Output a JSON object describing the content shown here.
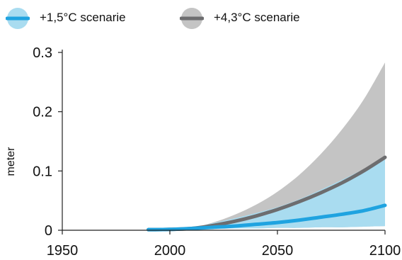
{
  "legend": {
    "items": [
      {
        "label": "+1,5°C scenarie",
        "color": "#1fa3e0",
        "band_color": "#a9dcf0"
      },
      {
        "label": "+4,3°C scenarie",
        "color": "#6d6d6f",
        "band_color": "#c4c4c4"
      }
    ]
  },
  "chart_data": {
    "type": "line",
    "xlabel": "",
    "ylabel": "meter",
    "xlim": [
      1950,
      2100
    ],
    "ylim": [
      0,
      0.3
    ],
    "x_ticks": [
      1950,
      2000,
      2050,
      2100
    ],
    "y_ticks": [
      0,
      0.1,
      0.2,
      0.3
    ],
    "y_tick_labels": [
      "0",
      "0.1",
      "0.2",
      "0.3"
    ],
    "grid": false,
    "legend_position": "top-left",
    "series": [
      {
        "name": "+1,5°C scenarie",
        "color": "#1fa3e0",
        "band_color": "#a9dcf0",
        "x": [
          1990,
          2000,
          2010,
          2020,
          2030,
          2040,
          2050,
          2060,
          2070,
          2080,
          2090,
          2100
        ],
        "values": [
          0.001,
          0.0015,
          0.003,
          0.005,
          0.007,
          0.01,
          0.013,
          0.017,
          0.022,
          0.027,
          0.033,
          0.042
        ],
        "lower": [
          0.001,
          0.001,
          0.002,
          0.002,
          0.003,
          0.003,
          0.004,
          0.004,
          0.005,
          0.005,
          0.006,
          0.007
        ],
        "upper": [
          0.001,
          0.0015,
          0.004,
          0.012,
          0.02,
          0.029,
          0.039,
          0.052,
          0.068,
          0.085,
          0.103,
          0.12
        ]
      },
      {
        "name": "+4,3°C scenarie",
        "color": "#6d6d6f",
        "band_color": "#c4c4c4",
        "x": [
          1990,
          2000,
          2010,
          2020,
          2030,
          2040,
          2050,
          2060,
          2070,
          2080,
          2090,
          2100
        ],
        "values": [
          0.001,
          0.0015,
          0.003,
          0.008,
          0.015,
          0.024,
          0.035,
          0.048,
          0.063,
          0.08,
          0.1,
          0.123
        ],
        "upper": [
          0.001,
          0.0015,
          0.004,
          0.013,
          0.026,
          0.043,
          0.065,
          0.093,
          0.128,
          0.17,
          0.22,
          0.283
        ]
      }
    ]
  }
}
